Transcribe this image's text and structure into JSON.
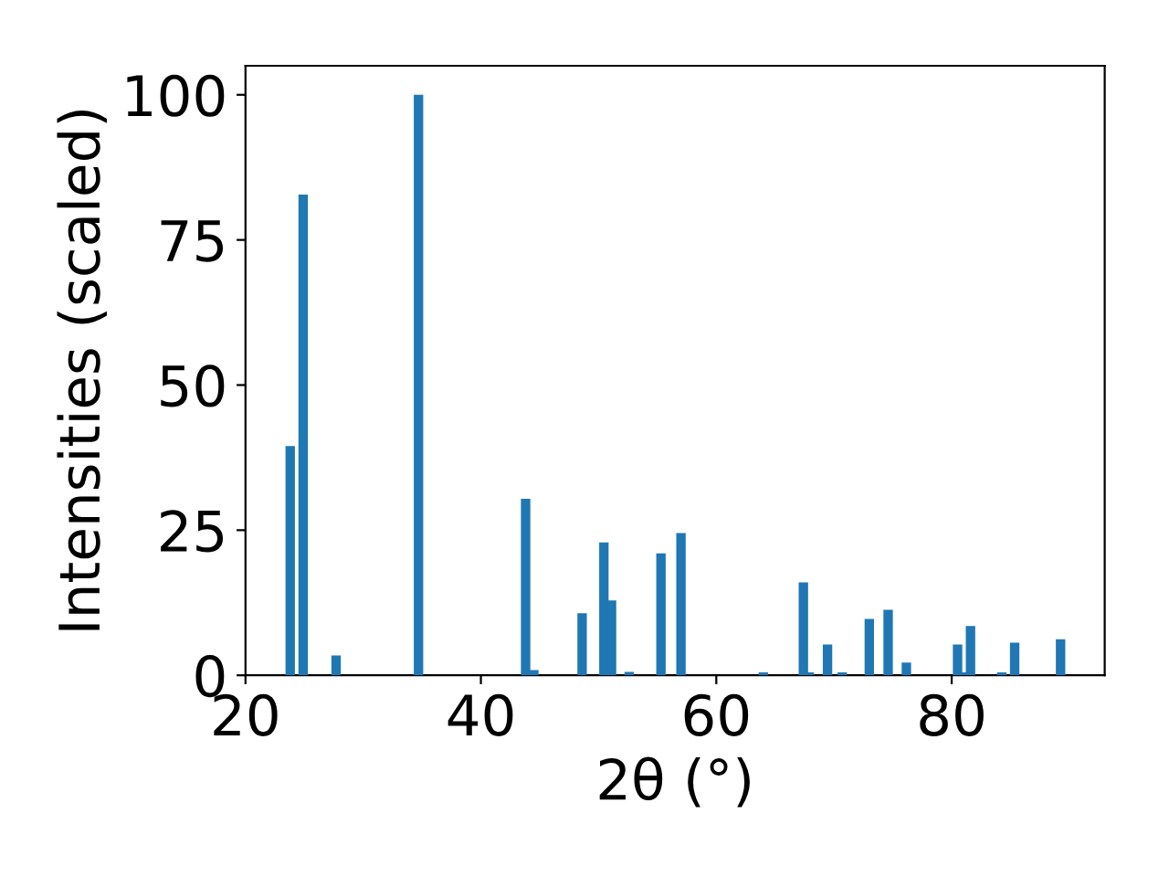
{
  "chart_data": {
    "type": "bar",
    "xlabel": "2θ (°)",
    "ylabel": "Intensities (scaled)",
    "x": [
      23.8,
      24.9,
      27.7,
      34.7,
      43.8,
      44.5,
      48.6,
      50.45,
      51.1,
      52.6,
      55.3,
      57.0,
      64.0,
      67.4,
      67.9,
      69.45,
      70.7,
      73.0,
      74.6,
      76.15,
      80.5,
      81.0,
      81.6,
      84.25,
      85.35,
      89.25
    ],
    "values": [
      39.5,
      82.8,
      3.4,
      100,
      30.4,
      0.9,
      10.7,
      22.9,
      12.9,
      0.6,
      21.0,
      24.5,
      0.5,
      16.0,
      0.5,
      5.3,
      0.5,
      9.7,
      11.3,
      2.2,
      5.3,
      0.5,
      8.5,
      0.5,
      5.6,
      6.2
    ],
    "color": "#1f77b4",
    "xlim": [
      20,
      93
    ],
    "xticks": [
      20,
      40,
      60,
      80
    ],
    "ylim": [
      0,
      105
    ],
    "yticks": [
      0,
      25,
      50,
      75,
      100
    ],
    "grid": false
  }
}
